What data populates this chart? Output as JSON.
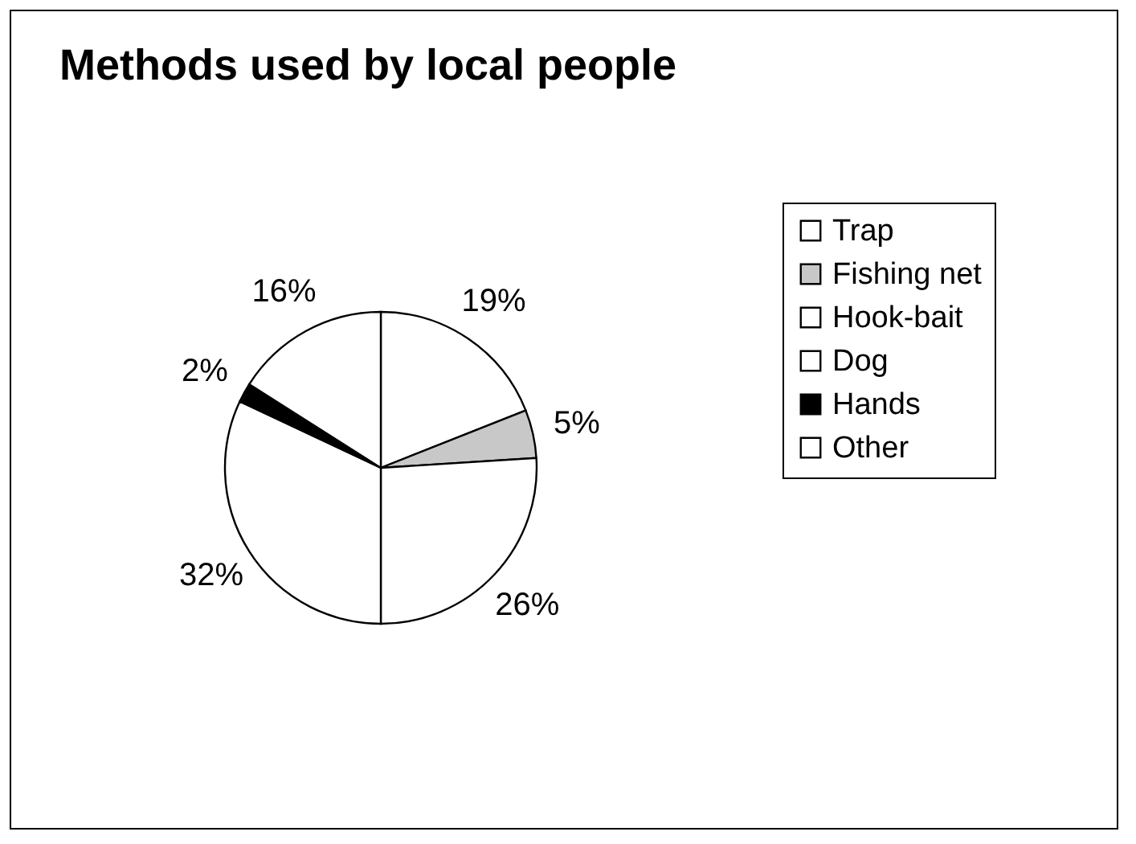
{
  "chart_data": {
    "type": "pie",
    "title": "Methods used by local people",
    "categories": [
      "Trap",
      "Fishing net",
      "Hook-bait",
      "Dog",
      "Hands",
      "Other"
    ],
    "values": [
      19,
      5,
      26,
      32,
      2,
      16
    ],
    "colors": [
      "#ffffff",
      "#c8c8c8",
      "#ffffff",
      "#ffffff",
      "#000000",
      "#ffffff"
    ],
    "value_labels": [
      "19%",
      "5%",
      "26%",
      "32%",
      "2%",
      "16%"
    ],
    "legend": "right"
  }
}
